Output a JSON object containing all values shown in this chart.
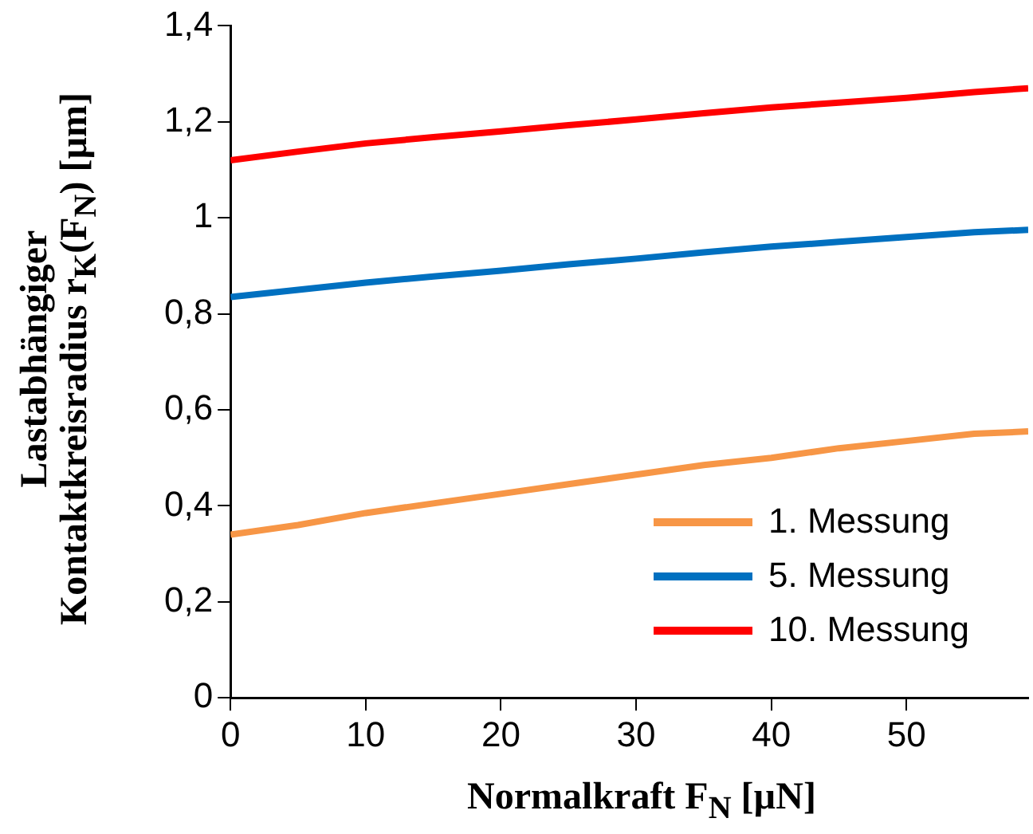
{
  "chart_data": {
    "type": "line",
    "xlabel": "Normalkraft F$_{N}$ [µN]",
    "ylabel": "Lastabhängiger\nKontaktkreisradius r$_{K}$(F$_{N}$) [µm]",
    "x": [
      0,
      5,
      10,
      15,
      20,
      25,
      30,
      35,
      40,
      45,
      50,
      55,
      59
    ],
    "xlim": [
      0,
      59
    ],
    "xticks": [
      0,
      10,
      20,
      30,
      40,
      50
    ],
    "ylim": [
      0,
      1.4
    ],
    "yticks": [
      {
        "value": 0,
        "label": "0"
      },
      {
        "value": 0.2,
        "label": "0,2"
      },
      {
        "value": 0.4,
        "label": "0,4"
      },
      {
        "value": 0.6,
        "label": "0,6"
      },
      {
        "value": 0.8,
        "label": "0,8"
      },
      {
        "value": 1,
        "label": "1"
      },
      {
        "value": 1.2,
        "label": "1,2"
      },
      {
        "value": 1.4,
        "label": "1,4"
      }
    ],
    "series": [
      {
        "name": "1. Messung",
        "color": "#f79646",
        "values": [
          0.34,
          0.36,
          0.385,
          0.405,
          0.425,
          0.445,
          0.465,
          0.485,
          0.5,
          0.52,
          0.535,
          0.55,
          0.555
        ]
      },
      {
        "name": "5. Messung",
        "color": "#0070c0",
        "values": [
          0.835,
          0.85,
          0.865,
          0.878,
          0.89,
          0.903,
          0.915,
          0.928,
          0.94,
          0.95,
          0.96,
          0.97,
          0.975
        ]
      },
      {
        "name": "10. Messung",
        "color": "#ff0000",
        "values": [
          1.12,
          1.138,
          1.155,
          1.168,
          1.18,
          1.193,
          1.205,
          1.218,
          1.23,
          1.24,
          1.25,
          1.262,
          1.27
        ]
      }
    ],
    "grid": false,
    "legend": "bottom right",
    "line_style": "solid",
    "marker": "none"
  }
}
